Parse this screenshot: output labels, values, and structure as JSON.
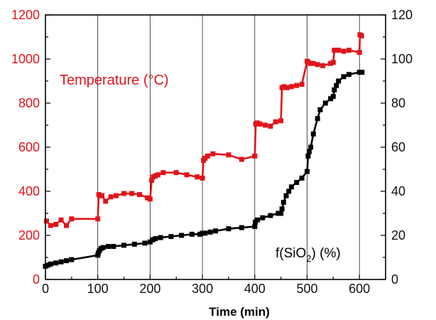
{
  "chart_data": {
    "type": "line",
    "xlabel": "Time (min)",
    "x_ticks": [
      "0",
      "100",
      "200",
      "300",
      "400",
      "500",
      "600"
    ],
    "xlim": [
      0,
      650
    ],
    "y_left_ticks": [
      "0",
      "200",
      "400",
      "600",
      "800",
      "1000",
      "1200"
    ],
    "ylim_left": [
      0,
      1200
    ],
    "y_right_ticks": [
      "0",
      "20",
      "40",
      "60",
      "80",
      "100",
      "120"
    ],
    "ylim_right": [
      0,
      120
    ],
    "grid": "vertical",
    "annotations": {
      "temperature": "Temperature (°C)",
      "fsio2_prefix": "f(SiO",
      "fsio2_sub": "2",
      "fsio2_suffix": ") (%)"
    },
    "colors": {
      "temperature": "#e0141b",
      "fsio2": "#000000",
      "grid": "#000000"
    },
    "series": [
      {
        "axis": "left",
        "color": "#e0141b",
        "x": [
          2,
          10,
          20,
          30,
          40,
          50,
          100,
          102,
          104,
          108,
          115,
          125,
          135,
          150,
          165,
          180,
          195,
          200,
          203,
          206,
          210,
          215,
          225,
          250,
          270,
          290,
          300,
          302,
          305,
          310,
          320,
          350,
          375,
          400,
          402,
          405,
          410,
          420,
          430,
          440,
          450,
          452,
          456,
          462,
          470,
          480,
          490,
          500,
          502,
          506,
          512,
          520,
          530,
          545,
          550,
          552,
          560,
          570,
          580,
          600,
          601,
          604
        ],
        "y": [
          265,
          245,
          250,
          270,
          245,
          275,
          275,
          385,
          380,
          380,
          355,
          375,
          380,
          390,
          390,
          385,
          370,
          365,
          450,
          465,
          470,
          475,
          485,
          485,
          475,
          465,
          460,
          540,
          550,
          560,
          570,
          565,
          545,
          560,
          705,
          710,
          705,
          700,
          695,
          715,
          720,
          870,
          875,
          870,
          875,
          880,
          885,
          990,
          985,
          980,
          980,
          975,
          970,
          980,
          985,
          1040,
          1040,
          1035,
          1040,
          1030,
          1110,
          1105
        ]
      },
      {
        "axis": "right",
        "color": "#000000",
        "x": [
          0,
          5,
          10,
          20,
          30,
          40,
          50,
          100,
          101,
          103,
          106,
          110,
          120,
          130,
          150,
          170,
          190,
          200,
          205,
          210,
          220,
          240,
          260,
          280,
          295,
          300,
          305,
          315,
          325,
          350,
          375,
          400,
          401,
          405,
          415,
          430,
          445,
          450,
          452,
          455,
          460,
          465,
          470,
          480,
          490,
          500,
          502,
          504,
          507,
          512,
          520,
          525,
          535,
          545,
          550,
          552,
          556,
          560,
          570,
          580,
          600,
          605
        ],
        "y": [
          6,
          6.5,
          7,
          7.5,
          8,
          8.5,
          9,
          11,
          12,
          13,
          14,
          14.5,
          15,
          15,
          15.5,
          16,
          16.5,
          17,
          18,
          18.5,
          19,
          19.5,
          20,
          20.5,
          20.5,
          21,
          21,
          21.5,
          22,
          23,
          23.5,
          24,
          26,
          27,
          28,
          29,
          30,
          30,
          32,
          35,
          38,
          40,
          42,
          44,
          46,
          49,
          56,
          58,
          60,
          66,
          73,
          77,
          80,
          82,
          83,
          86,
          88,
          90,
          92,
          93,
          94,
          94
        ]
      }
    ]
  }
}
